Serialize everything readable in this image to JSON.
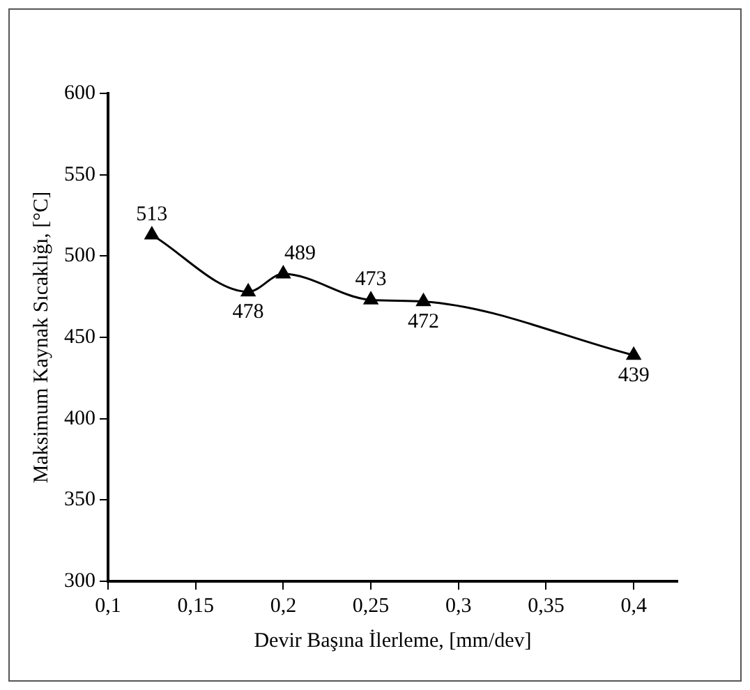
{
  "chart_data": {
    "type": "line",
    "xlabel": "Devir Başına İlerleme, [mm/dev]",
    "ylabel": "Maksimum Kaynak Sıcaklığı, [°C]",
    "x": [
      0.125,
      0.18,
      0.2,
      0.25,
      0.28,
      0.4
    ],
    "series": [
      {
        "color": "#000000",
        "values": [
          513,
          478,
          489,
          473,
          472,
          439
        ]
      }
    ],
    "xlim": [
      0.1,
      0.425
    ],
    "xticks": [
      {
        "value": 0.1,
        "label": "0,1"
      },
      {
        "value": 0.15,
        "label": "0,15"
      },
      {
        "value": 0.2,
        "label": "0,2"
      },
      {
        "value": 0.25,
        "label": "0,25"
      },
      {
        "value": 0.3,
        "label": "0,3"
      },
      {
        "value": 0.35,
        "label": "0,35"
      },
      {
        "value": 0.4,
        "label": "0,4"
      }
    ],
    "ylim": [
      300,
      600
    ],
    "yticks": [
      300,
      350,
      400,
      450,
      500,
      550,
      600
    ],
    "grid": false,
    "legend": false,
    "marker": "triangle",
    "line_style": "solid",
    "data_labels": true
  }
}
